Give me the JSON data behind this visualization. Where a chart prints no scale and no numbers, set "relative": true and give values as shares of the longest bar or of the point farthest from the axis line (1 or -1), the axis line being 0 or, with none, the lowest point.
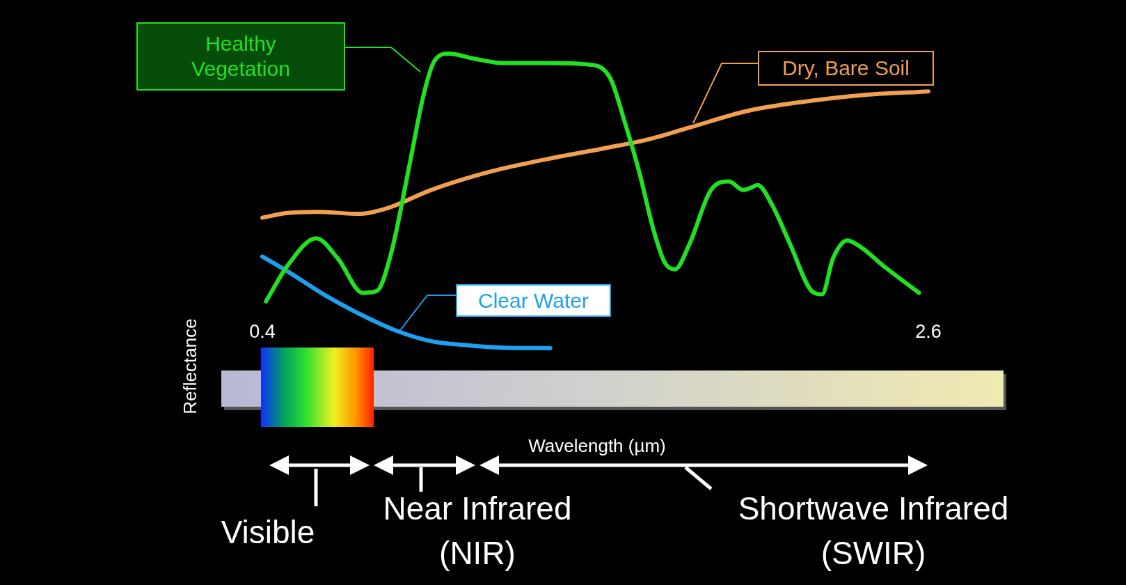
{
  "chart_data": {
    "type": "line",
    "relative": true,
    "xlim": [
      0.4,
      2.6
    ],
    "xlabel": "Wavelength (µm)",
    "ylabel": "Reflectance",
    "xticks": [
      0.4,
      2.6
    ],
    "marker": "none",
    "annotations": [
      "Visible",
      "Near Infrared (NIR)",
      "Shortwave Infrared (SWIR)"
    ],
    "series": [
      {
        "name": "Healthy Vegetation",
        "color": "#22e022",
        "x": [
          0.412,
          0.483,
          0.578,
          0.649,
          0.732,
          0.779,
          0.827,
          0.886,
          0.934,
          0.969,
          1.016,
          1.099,
          1.194,
          1.336,
          1.479,
          1.55,
          1.597,
          1.645,
          1.692,
          1.728,
          1.763,
          1.811,
          1.882,
          1.941,
          1.989,
          2.012,
          2.036,
          2.083,
          2.143,
          2.214,
          2.249,
          2.285,
          2.332,
          2.38,
          2.451,
          2.569
        ],
        "values": [
          0.159,
          0.28,
          0.373,
          0.305,
          0.188,
          0.195,
          0.329,
          0.622,
          0.866,
          0.976,
          1,
          0.983,
          0.968,
          0.968,
          0.963,
          0.915,
          0.768,
          0.598,
          0.402,
          0.293,
          0.268,
          0.354,
          0.537,
          0.566,
          0.537,
          0.544,
          0.554,
          0.488,
          0.354,
          0.195,
          0.183,
          0.305,
          0.366,
          0.341,
          0.28,
          0.188
        ]
      },
      {
        "name": "Dry, Bare Soil",
        "color": "#f0a050",
        "x": [
          0.4,
          0.483,
          0.578,
          0.72,
          0.815,
          0.957,
          1.147,
          1.336,
          1.526,
          1.668,
          1.811,
          2.0,
          2.19,
          2.38,
          2.6
        ],
        "values": [
          0.443,
          0.459,
          0.463,
          0.456,
          0.476,
          0.537,
          0.598,
          0.641,
          0.678,
          0.707,
          0.749,
          0.805,
          0.837,
          0.859,
          0.872
        ]
      },
      {
        "name": "Clear Water",
        "color": "#1ea0f0",
        "x": [
          0.4,
          0.483,
          0.602,
          0.72,
          0.839,
          0.957,
          1.076,
          1.194,
          1.351
        ],
        "values": [
          0.311,
          0.261,
          0.183,
          0.117,
          0.061,
          0.024,
          0.01,
          0.002,
          0
        ]
      }
    ]
  }
}
